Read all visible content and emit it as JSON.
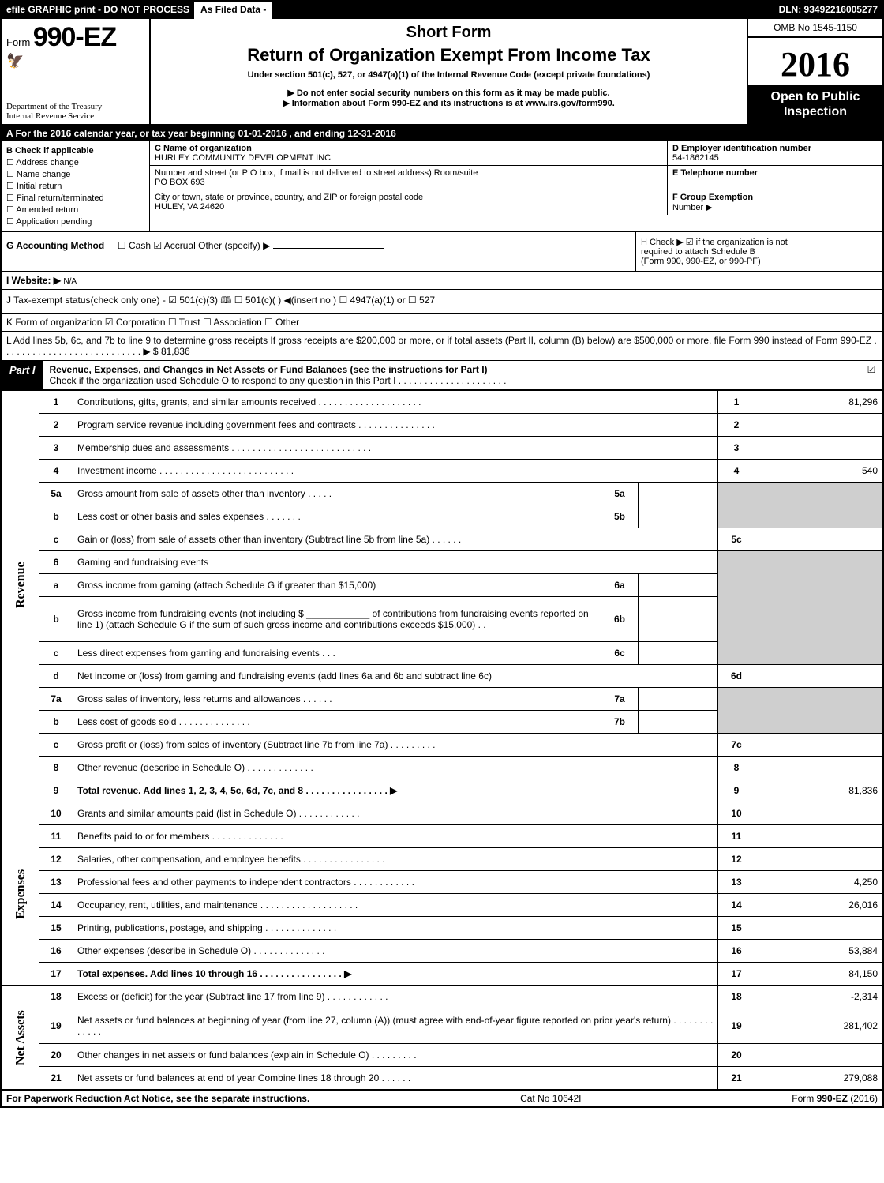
{
  "topbar": {
    "left": "efile GRAPHIC print - DO NOT PROCESS",
    "mid": "As Filed Data -",
    "right": "DLN: 93492216005277"
  },
  "header": {
    "form_prefix": "Form",
    "form_no": "990-EZ",
    "short_form": "Short Form",
    "title": "Return of Organization Exempt From Income Tax",
    "subtitle": "Under section 501(c), 527, or 4947(a)(1) of the Internal Revenue Code (except private foundations)",
    "notice1": "▶ Do not enter social security numbers on this form as it may be made public.",
    "notice2": "▶ Information about Form 990-EZ and its instructions is at www.irs.gov/form990.",
    "treasury1": "Department of the Treasury",
    "treasury2": "Internal Revenue Service",
    "omb": "OMB No 1545-1150",
    "year": "2016",
    "open_public1": "Open to Public",
    "open_public2": "Inspection"
  },
  "rowA": "A  For the 2016 calendar year, or tax year beginning 01-01-2016          , and ending 12-31-2016",
  "B": {
    "label": "B  Check if applicable",
    "items": [
      "☐ Address change",
      "☐ Name change",
      "☐ Initial return",
      "☐ Final return/terminated",
      "☐ Amended return",
      "☐ Application pending"
    ]
  },
  "C": {
    "label": "C Name of organization",
    "name": "HURLEY COMMUNITY DEVELOPMENT INC",
    "street_label": "Number and street (or P O box, if mail is not delivered to street address)  Room/suite",
    "street": "PO BOX 693",
    "city_label": "City or town, state or province, country, and ZIP or foreign postal code",
    "city": "HULEY, VA  24620"
  },
  "D": {
    "label": "D Employer identification number",
    "value": "54-1862145"
  },
  "E": {
    "label": "E Telephone number",
    "value": ""
  },
  "F": {
    "label": "F Group Exemption",
    "sub": "Number   ▶",
    "value": ""
  },
  "G": {
    "label": "G Accounting Method",
    "options": "☐ Cash   ☑ Accrual   Other (specify) ▶"
  },
  "H": {
    "label": "H   Check ▶   ☑  if the organization is not",
    "line2": "required to attach Schedule B",
    "line3": "(Form 990, 990-EZ, or 990-PF)"
  },
  "I": {
    "label": "I Website: ▶",
    "value": "N/A"
  },
  "J": {
    "text": "J Tax-exempt status(check only one) - ☑ 501(c)(3) 🕮 ☐ 501(c)(  ) ◀(insert no ) ☐ 4947(a)(1) or ☐ 527"
  },
  "K": {
    "text": "K Form of organization     ☑ Corporation   ☐ Trust   ☐ Association   ☐ Other"
  },
  "L": {
    "text": "L Add lines 5b, 6c, and 7b to line 9 to determine gross receipts  If gross receipts are $200,000 or more, or if total assets (Part II, column (B) below) are $500,000 or more, file Form 990 instead of Form 990-EZ  .  .  .  .  .  .  .  .  .  .  .  .  .  .  .  .  .  .  .  .  .  .  .  .  .  .  .  ▶ $ 81,836"
  },
  "part1": {
    "tag": "Part I",
    "title": "Revenue, Expenses, and Changes in Net Assets or Fund Balances (see the instructions for Part I)",
    "check_note": "Check if the organization used Schedule O to respond to any question in this Part I .  .  .  .  .  .  .  .  .  .  .  .  .  .  .  .  .  .  .  .  .",
    "check": "☑"
  },
  "sides": {
    "revenue": "Revenue",
    "expenses": "Expenses",
    "netassets": "Net Assets"
  },
  "lines": {
    "l1": {
      "no": "1",
      "desc": "Contributions, gifts, grants, and similar amounts received .  .  .  .  .  .  .  .  .  .  .  .  .  .  .  .  .  .  .  .",
      "col": "1",
      "val": "81,296"
    },
    "l2": {
      "no": "2",
      "desc": "Program service revenue including government fees and contracts .  .  .  .  .  .  .  .  .  .  .  .  .  .  .",
      "col": "2",
      "val": ""
    },
    "l3": {
      "no": "3",
      "desc": "Membership dues and assessments .  .  .  .  .  .  .  .  .  .  .  .  .  .  .  .  .  .  .  .  .  .  .  .  .  .  .",
      "col": "3",
      "val": ""
    },
    "l4": {
      "no": "4",
      "desc": "Investment income .  .  .  .  .  .  .  .  .  .  .  .  .  .  .  .  .  .  .  .  .  .  .  .  .  .",
      "col": "4",
      "val": "540"
    },
    "l5a": {
      "no": "5a",
      "desc": "Gross amount from sale of assets other than inventory .  .  .  .  .",
      "ino": "5a",
      "ival": ""
    },
    "l5b": {
      "no": "b",
      "desc": "Less  cost or other basis and sales expenses .  .  .  .  .  .  .",
      "ino": "5b",
      "ival": ""
    },
    "l5c": {
      "no": "c",
      "desc": "Gain or (loss) from sale of assets other than inventory (Subtract line 5b from line 5a) .  .  .  .  .  .",
      "col": "5c",
      "val": ""
    },
    "l6": {
      "no": "6",
      "desc": "Gaming and fundraising events"
    },
    "l6a": {
      "no": "a",
      "desc": "Gross income from gaming (attach Schedule G if greater than $15,000)",
      "ino": "6a",
      "ival": ""
    },
    "l6b": {
      "no": "b",
      "desc": "Gross income from fundraising events (not including $ ____________ of contributions from fundraising events reported on line 1) (attach Schedule G if the sum of such gross income and contributions exceeds $15,000)   .  .",
      "ino": "6b",
      "ival": ""
    },
    "l6c": {
      "no": "c",
      "desc": "Less  direct expenses from gaming and fundraising events      .  .  .",
      "ino": "6c",
      "ival": ""
    },
    "l6d": {
      "no": "d",
      "desc": "Net income or (loss) from gaming and fundraising events (add lines 6a and 6b and subtract line 6c)",
      "col": "6d",
      "val": ""
    },
    "l7a": {
      "no": "7a",
      "desc": "Gross sales of inventory, less returns and allowances .  .  .  .  .  .",
      "ino": "7a",
      "ival": ""
    },
    "l7b": {
      "no": "b",
      "desc": "Less  cost of goods sold           .  .  .  .  .  .  .  .  .  .  .  .  .  .",
      "ino": "7b",
      "ival": ""
    },
    "l7c": {
      "no": "c",
      "desc": "Gross profit or (loss) from sales of inventory (Subtract line 7b from line 7a) .  .  .  .  .  .  .  .  .",
      "col": "7c",
      "val": ""
    },
    "l8": {
      "no": "8",
      "desc": "Other revenue (describe in Schedule O)                             .  .  .  .  .  .  .  .  .  .  .  .  .",
      "col": "8",
      "val": ""
    },
    "l9": {
      "no": "9",
      "desc": "Total revenue. Add lines 1, 2, 3, 4, 5c, 6d, 7c, and 8  .  .  .  .  .  .  .  .  .  .  .  .  .  .  .  .     ▶",
      "col": "9",
      "val": "81,836"
    },
    "l10": {
      "no": "10",
      "desc": "Grants and similar amounts paid (list in Schedule O)           .  .  .  .  .  .  .  .  .  .  .  .",
      "col": "10",
      "val": ""
    },
    "l11": {
      "no": "11",
      "desc": "Benefits paid to or for members                              .  .  .  .  .  .  .  .  .  .  .  .  .  .",
      "col": "11",
      "val": ""
    },
    "l12": {
      "no": "12",
      "desc": "Salaries, other compensation, and employee benefits .  .  .  .  .  .  .  .  .  .  .  .  .  .  .  .",
      "col": "12",
      "val": ""
    },
    "l13": {
      "no": "13",
      "desc": "Professional fees and other payments to independent contractors  .  .  .  .  .  .  .  .  .  .  .  .",
      "col": "13",
      "val": "4,250"
    },
    "l14": {
      "no": "14",
      "desc": "Occupancy, rent, utilities, and maintenance .  .  .  .  .  .  .  .  .  .  .  .  .  .  .  .  .  .  .",
      "col": "14",
      "val": "26,016"
    },
    "l15": {
      "no": "15",
      "desc": "Printing, publications, postage, and shipping              .  .  .  .  .  .  .  .  .  .  .  .  .  .",
      "col": "15",
      "val": ""
    },
    "l16": {
      "no": "16",
      "desc": "Other expenses (describe in Schedule O)                   .  .  .  .  .  .  .  .  .  .  .  .  .  .",
      "col": "16",
      "val": "53,884"
    },
    "l17": {
      "no": "17",
      "desc": "Total expenses. Add lines 10 through 16         .  .  .  .  .  .  .  .  .  .  .  .  .  .  .  .     ▶",
      "col": "17",
      "val": "84,150"
    },
    "l18": {
      "no": "18",
      "desc": "Excess or (deficit) for the year (Subtract line 17 from line 9)      .  .  .  .  .  .  .  .  .  .  .  .",
      "col": "18",
      "val": "-2,314"
    },
    "l19": {
      "no": "19",
      "desc": "Net assets or fund balances at beginning of year (from line 27, column (A)) (must agree with end-of-year figure reported on prior year's return)               .  .  .  .  .  .  .  .  .  .  .  .  .",
      "col": "19",
      "val": "281,402"
    },
    "l20": {
      "no": "20",
      "desc": "Other changes in net assets or fund balances (explain in Schedule O)     .  .  .  .  .  .  .  .  .",
      "col": "20",
      "val": ""
    },
    "l21": {
      "no": "21",
      "desc": "Net assets or fund balances at end of year  Combine lines 18 through 20          .  .  .  .  .  .",
      "col": "21",
      "val": "279,088"
    }
  },
  "footer": {
    "left": "For Paperwork Reduction Act Notice, see the separate instructions.",
    "mid": "Cat No 10642I",
    "right": "Form 990-EZ (2016)"
  }
}
